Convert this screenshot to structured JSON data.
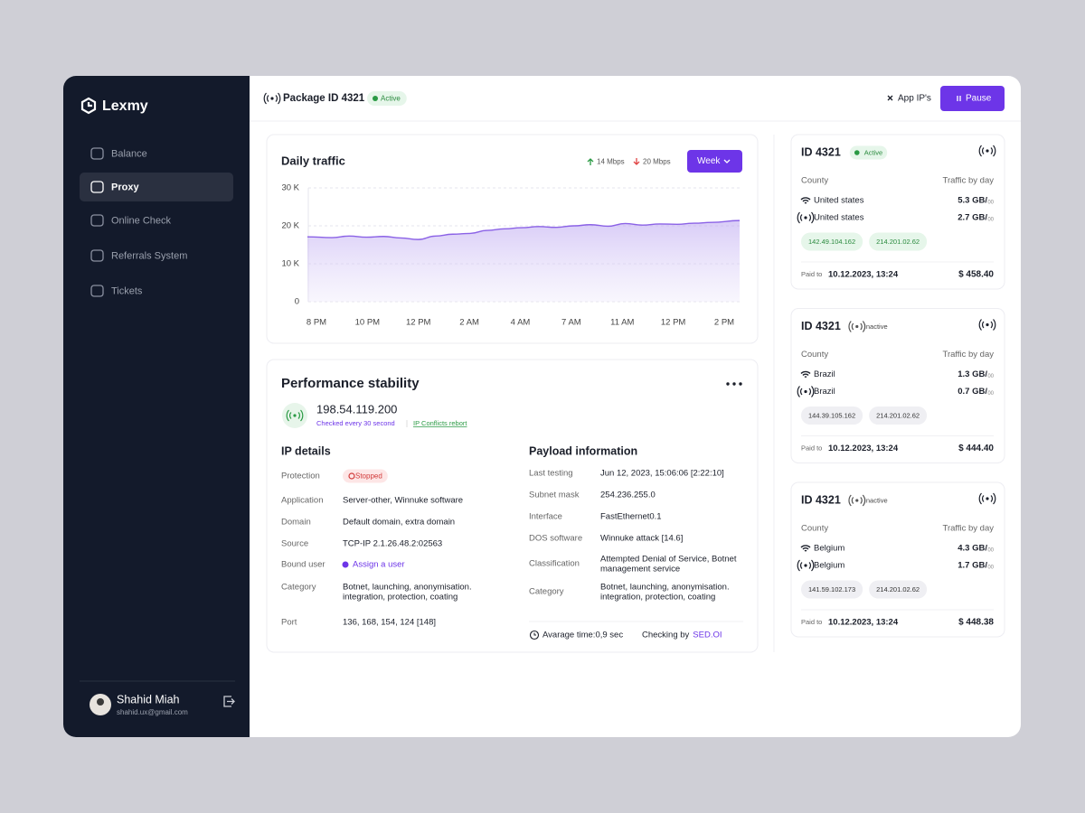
{
  "sidebar": {
    "brand": "Lexmy",
    "nav": [
      "Balance",
      "Proxy",
      "Online Check",
      "Referrals System",
      "Tickets"
    ],
    "user": {
      "name": "Shahid Miah",
      "email": "shahid.ux@gmail.com"
    }
  },
  "header": {
    "title": "Package ID 4321",
    "status": "Active",
    "app_ips": "App IP's",
    "pause": "Pause"
  },
  "chart_data": {
    "type": "line",
    "title": "Daily traffic",
    "up": "14 Mbps",
    "down": "20 Mbps",
    "period": "Week",
    "categories": [
      "8 PM",
      null,
      null,
      "10 PM",
      null,
      null,
      "12 PM",
      null,
      null,
      "2 AM",
      null,
      null,
      "4 AM",
      null,
      null,
      "7 AM",
      null,
      null,
      "11 AM",
      null,
      null,
      "12 PM",
      null,
      null,
      "2 PM"
    ],
    "values": [
      17100,
      16900,
      17300,
      17000,
      17200,
      16800,
      16400,
      17300,
      17800,
      18000,
      18800,
      19200,
      19500,
      19800,
      19600,
      20000,
      20300,
      19900,
      20600,
      20200,
      20500,
      20400,
      20700,
      20900,
      21400
    ],
    "color": "#8b62e6",
    "ylim": [
      0,
      30000
    ],
    "yticks": [
      0,
      {
        "value": 10000,
        "label": "10 K"
      },
      {
        "value": 20000,
        "label": "20 K"
      },
      {
        "value": 30000,
        "label": "30 K"
      }
    ],
    "grid": true
  },
  "performance": {
    "title": "Performance stability",
    "ip": "198.54.119.200",
    "checked": "Checked every 30 second",
    "conflicts": "IP Conflicts rebort",
    "ip_details": {
      "title": "IP details",
      "rows": [
        {
          "label": "Protection",
          "value": [
            "Stopped"
          ]
        },
        {
          "label": "Application",
          "value": [
            "Server-other, Winnuke software"
          ]
        },
        {
          "label": "Domain",
          "value": [
            "Default domain, extra domain"
          ]
        },
        {
          "label": "Source",
          "value": [
            "TCP-IP 2.1.26.48.2:02563"
          ]
        },
        {
          "label": "Bound user",
          "value": [
            "Assign a user"
          ]
        },
        {
          "label": "Category",
          "value": [
            "Botnet, launching, anonymisation.",
            "integration, protection, coating"
          ]
        },
        {
          "label": "Port",
          "value": [
            "136, 168, 154, 124 [148]"
          ]
        }
      ]
    },
    "payload": {
      "title": "Payload information",
      "rows": [
        {
          "label": "Last testing",
          "value": [
            "Jun 12, 2023, 15:06:06 [2:22:10]"
          ]
        },
        {
          "label": "Subnet mask",
          "value": [
            "254.236.255.0"
          ]
        },
        {
          "label": "Interface",
          "value": [
            "FastEthernet0.1"
          ]
        },
        {
          "label": "DOS software",
          "value": [
            "Winnuke attack [14.6]"
          ]
        },
        {
          "label": "Classification",
          "value": [
            "Attempted Denial of Service, Botnet",
            "management service"
          ]
        },
        {
          "label": "Category",
          "value": [
            "Botnet, launching, anonymisation.",
            "integration, protection, coating"
          ]
        }
      ]
    },
    "avg_time": "Avarage time:0,9 sec",
    "checking_by": "Checking by",
    "checker": "SED.OI"
  },
  "packages": [
    {
      "id": "ID 4321",
      "status": "Active",
      "country_label": "County",
      "traffic_label": "Traffic by day",
      "rows": [
        {
          "country": "United states",
          "traffic": "5.3 GB/",
          "unit": "00"
        },
        {
          "country": "United states",
          "traffic": "2.7 GB/",
          "unit": "00"
        }
      ],
      "ips": [
        "142.49.104.162",
        "214.201.02.62"
      ],
      "paid_label": "Paid to",
      "paid_date": "10.12.2023, 13:24",
      "amount": "$ 458.40"
    },
    {
      "id": "ID 4321",
      "status": "Inactive",
      "country_label": "County",
      "traffic_label": "Traffic by day",
      "rows": [
        {
          "country": "Brazil",
          "traffic": "1.3 GB/",
          "unit": "00"
        },
        {
          "country": "Brazil",
          "traffic": "0.7 GB/",
          "unit": "00"
        }
      ],
      "ips": [
        "144.39.105.162",
        "214.201.02.62"
      ],
      "paid_label": "Paid to",
      "paid_date": "10.12.2023, 13:24",
      "amount": "$ 444.40"
    },
    {
      "id": "ID 4321",
      "status": "Inactive",
      "country_label": "County",
      "traffic_label": "Traffic by day",
      "rows": [
        {
          "country": "Belgium",
          "traffic": "4.3 GB/",
          "unit": "00"
        },
        {
          "country": "Belgium",
          "traffic": "1.7 GB/",
          "unit": "00"
        }
      ],
      "ips": [
        "141.59.102.173",
        "214.201.02.62"
      ],
      "paid_label": "Paid to",
      "paid_date": "10.12.2023, 13:24",
      "amount": "$ 448.38"
    }
  ]
}
